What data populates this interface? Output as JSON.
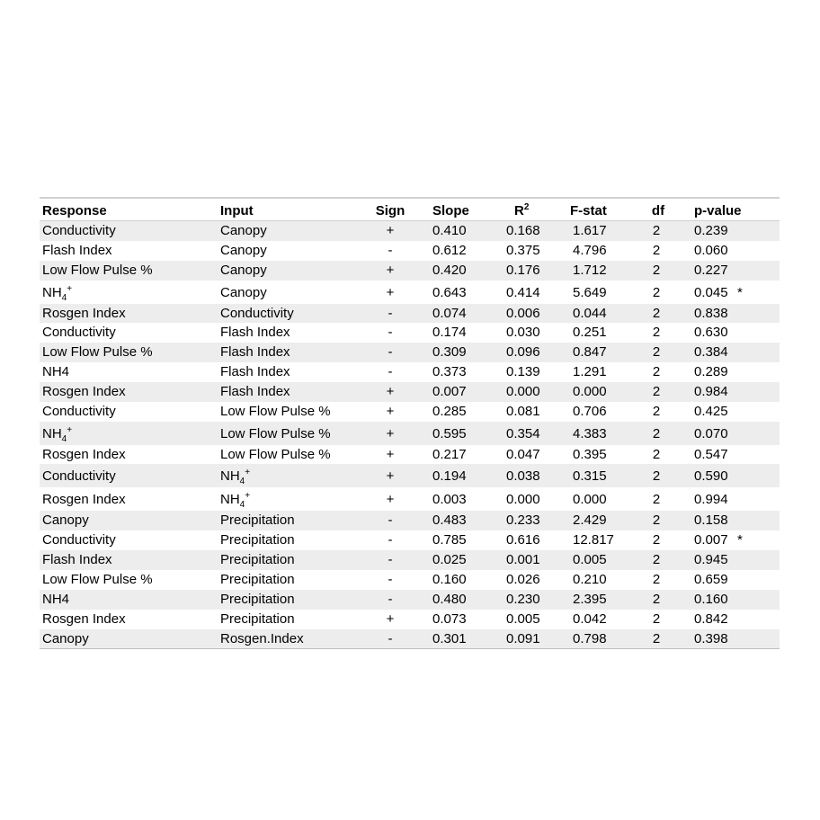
{
  "table": {
    "headers": {
      "response": "Response",
      "input": "Input",
      "sign": "Sign",
      "slope": "Slope",
      "r2_base": "R",
      "r2_sup": "2",
      "fstat": "F-stat",
      "df": "df",
      "pvalue": "p-value"
    },
    "rows": [
      {
        "response": "Conductivity",
        "input": "Canopy",
        "sign": "+",
        "slope": "0.410",
        "r2": "0.168",
        "fstat": "1.617",
        "df": "2",
        "pvalue": "0.239",
        "sig": ""
      },
      {
        "response": "Flash  Index",
        "input": "Canopy",
        "sign": "-",
        "slope": "0.612",
        "r2": "0.375",
        "fstat": "4.796",
        "df": "2",
        "pvalue": "0.060",
        "sig": ""
      },
      {
        "response": "Low  Flow  Pulse  %",
        "input": "Canopy",
        "sign": "+",
        "slope": "0.420",
        "r2": "0.176",
        "fstat": "1.712",
        "df": "2",
        "pvalue": "0.227",
        "sig": ""
      },
      {
        "response": "NH",
        "response_sub": "4",
        "response_sup": "+",
        "input": "Canopy",
        "sign": "+",
        "slope": "0.643",
        "r2": "0.414",
        "fstat": "5.649",
        "df": "2",
        "pvalue": "0.045",
        "sig": "*"
      },
      {
        "response": "Rosgen  Index",
        "input": "Conductivity",
        "sign": "-",
        "slope": "0.074",
        "r2": "0.006",
        "fstat": "0.044",
        "df": "2",
        "pvalue": "0.838",
        "sig": ""
      },
      {
        "response": "Conductivity",
        "input": "Flash  Index",
        "sign": "-",
        "slope": "0.174",
        "r2": "0.030",
        "fstat": "0.251",
        "df": "2",
        "pvalue": "0.630",
        "sig": ""
      },
      {
        "response": "Low  Flow  Pulse  %",
        "input": "Flash  Index",
        "sign": "-",
        "slope": "0.309",
        "r2": "0.096",
        "fstat": "0.847",
        "df": "2",
        "pvalue": "0.384",
        "sig": ""
      },
      {
        "response": "NH4",
        "input": "Flash  Index",
        "sign": "-",
        "slope": "0.373",
        "r2": "0.139",
        "fstat": "1.291",
        "df": "2",
        "pvalue": "0.289",
        "sig": ""
      },
      {
        "response": "Rosgen  Index",
        "input": "Flash  Index",
        "sign": "+",
        "slope": "0.007",
        "r2": "0.000",
        "fstat": "0.000",
        "df": "2",
        "pvalue": "0.984",
        "sig": ""
      },
      {
        "response": "Conductivity",
        "input": "Low  Flow  Pulse  %",
        "sign": "+",
        "slope": "0.285",
        "r2": "0.081",
        "fstat": "0.706",
        "df": "2",
        "pvalue": "0.425",
        "sig": ""
      },
      {
        "response": "NH",
        "response_sub": "4",
        "response_sup": "+",
        "input": "Low  Flow  Pulse  %",
        "sign": "+",
        "slope": "0.595",
        "r2": "0.354",
        "fstat": "4.383",
        "df": "2",
        "pvalue": "0.070",
        "sig": ""
      },
      {
        "response": "Rosgen  Index",
        "input": "Low  Flow  Pulse  %",
        "sign": "+",
        "slope": "0.217",
        "r2": "0.047",
        "fstat": "0.395",
        "df": "2",
        "pvalue": "0.547",
        "sig": ""
      },
      {
        "response": "Conductivity",
        "input": "NH",
        "input_sub": "4",
        "input_sup": "+",
        "sign": "+",
        "slope": "0.194",
        "r2": "0.038",
        "fstat": "0.315",
        "df": "2",
        "pvalue": "0.590",
        "sig": ""
      },
      {
        "response": "Rosgen  Index",
        "input": "NH",
        "input_sub": "4",
        "input_sup": "+",
        "sign": "+",
        "slope": "0.003",
        "r2": "0.000",
        "fstat": "0.000",
        "df": "2",
        "pvalue": "0.994",
        "sig": ""
      },
      {
        "response": "Canopy",
        "input": "Precipitation",
        "sign": "-",
        "slope": "0.483",
        "r2": "0.233",
        "fstat": "2.429",
        "df": "2",
        "pvalue": "0.158",
        "sig": ""
      },
      {
        "response": "Conductivity",
        "input": "Precipitation",
        "sign": "-",
        "slope": "0.785",
        "r2": "0.616",
        "fstat": "12.817",
        "df": "2",
        "pvalue": "0.007",
        "sig": "*"
      },
      {
        "response": "Flash  Index",
        "input": "Precipitation",
        "sign": "-",
        "slope": "0.025",
        "r2": "0.001",
        "fstat": "0.005",
        "df": "2",
        "pvalue": "0.945",
        "sig": ""
      },
      {
        "response": "Low  Flow  Pulse  %",
        "input": "Precipitation",
        "sign": "-",
        "slope": "0.160",
        "r2": "0.026",
        "fstat": "0.210",
        "df": "2",
        "pvalue": "0.659",
        "sig": ""
      },
      {
        "response": "NH4",
        "input": "Precipitation",
        "sign": "-",
        "slope": "0.480",
        "r2": "0.230",
        "fstat": "2.395",
        "df": "2",
        "pvalue": "0.160",
        "sig": ""
      },
      {
        "response": "Rosgen  Index",
        "input": "Precipitation",
        "sign": "+",
        "slope": "0.073",
        "r2": "0.005",
        "fstat": "0.042",
        "df": "2",
        "pvalue": "0.842",
        "sig": ""
      },
      {
        "response": "Canopy",
        "input": "Rosgen.Index",
        "sign": "-",
        "slope": "0.301",
        "r2": "0.091",
        "fstat": "0.798",
        "df": "2",
        "pvalue": "0.398",
        "sig": ""
      }
    ]
  }
}
